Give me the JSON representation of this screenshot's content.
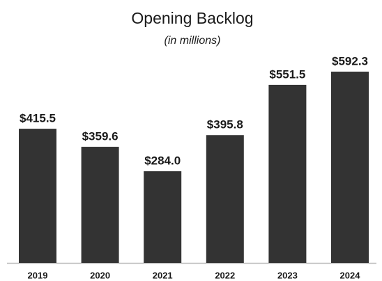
{
  "chart_data": {
    "type": "bar",
    "title": "Opening Backlog",
    "subtitle": "(in millions)",
    "categories": [
      "2019",
      "2020",
      "2021",
      "2022",
      "2023",
      "2024"
    ],
    "values": [
      415.5,
      359.6,
      284.0,
      395.8,
      551.5,
      592.3
    ],
    "value_labels": [
      "$415.5",
      "$359.6",
      "$284.0",
      "$395.8",
      "$551.5",
      "$592.3"
    ],
    "color": "#333333"
  }
}
